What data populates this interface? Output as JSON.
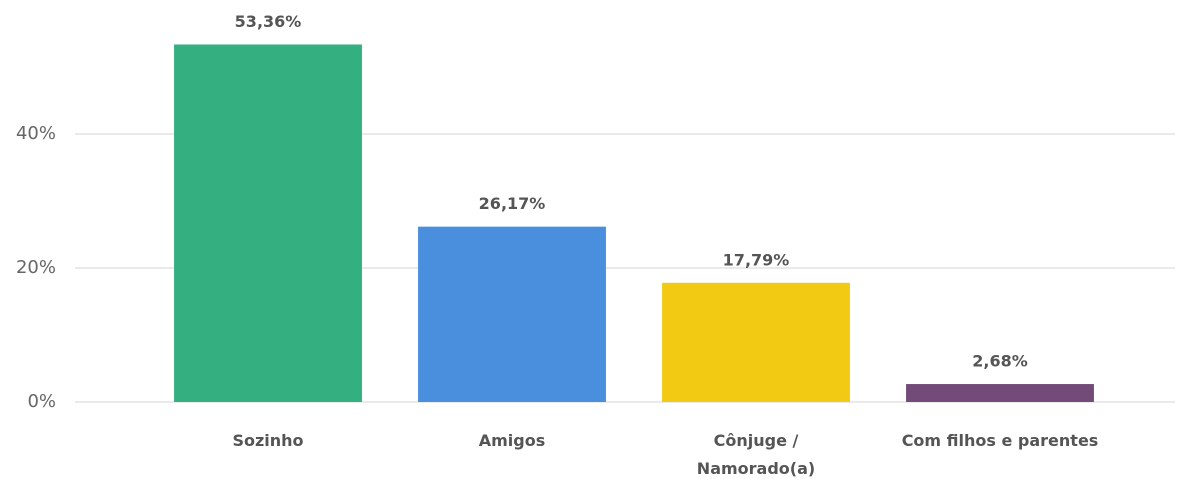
{
  "chart_data": {
    "type": "bar",
    "categories": [
      "Sozinho",
      "Amigos",
      "Cônjuge /\nNamorado(a)",
      "Com filhos e parentes"
    ],
    "values": [
      53.36,
      26.17,
      17.79,
      2.68
    ],
    "value_labels": [
      "53,36%",
      "26,17%",
      "17,79%",
      "2,68%"
    ],
    "colors": [
      "#34af80",
      "#4a8ede",
      "#f2ca14",
      "#734b79"
    ],
    "ylim": [
      0,
      60
    ],
    "yticks": [
      {
        "value": 0,
        "label": "0%"
      },
      {
        "value": 20,
        "label": "20%"
      },
      {
        "value": 40,
        "label": "40%"
      }
    ],
    "grid": true
  }
}
